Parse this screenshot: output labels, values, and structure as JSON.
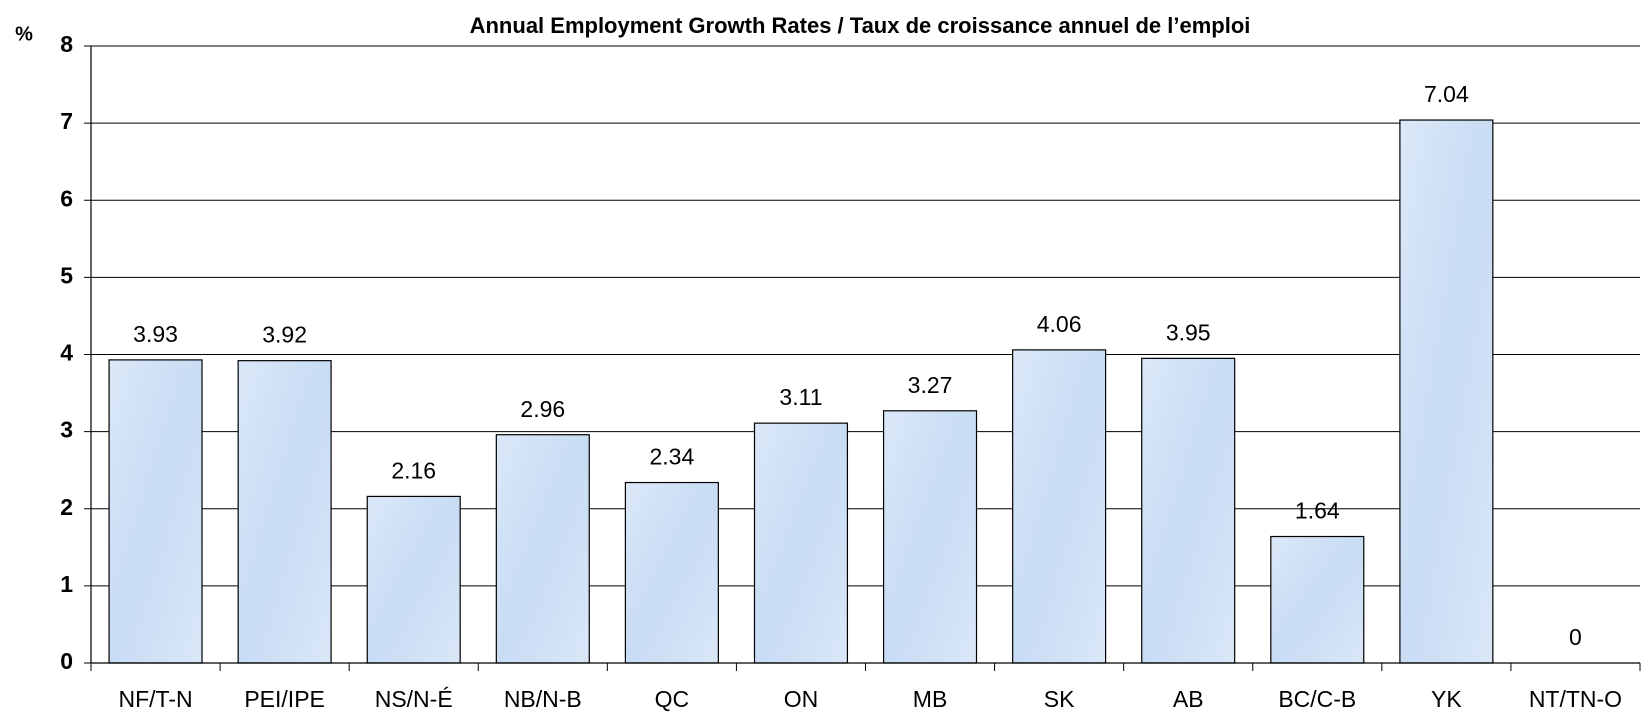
{
  "chart_data": {
    "type": "bar",
    "title": "Annual Employment Growth Rates / Taux de croissance annuel de l’emploi",
    "y_label": "%",
    "categories": [
      "NF/T-N",
      "PEI/IPE",
      "NS/N-É",
      "NB/N-B",
      "QC",
      "ON",
      "MB",
      "SK",
      "AB",
      "BC/C-B",
      "YK",
      "NT/TN-O"
    ],
    "values": [
      3.93,
      3.92,
      2.16,
      2.96,
      2.34,
      3.11,
      3.27,
      4.06,
      3.95,
      1.64,
      7.04,
      0
    ],
    "color": "#d4e4f7",
    "ylim": [
      0,
      8
    ],
    "yticks": [
      0,
      1,
      2,
      3,
      4,
      5,
      6,
      7,
      8
    ],
    "grid": true
  }
}
